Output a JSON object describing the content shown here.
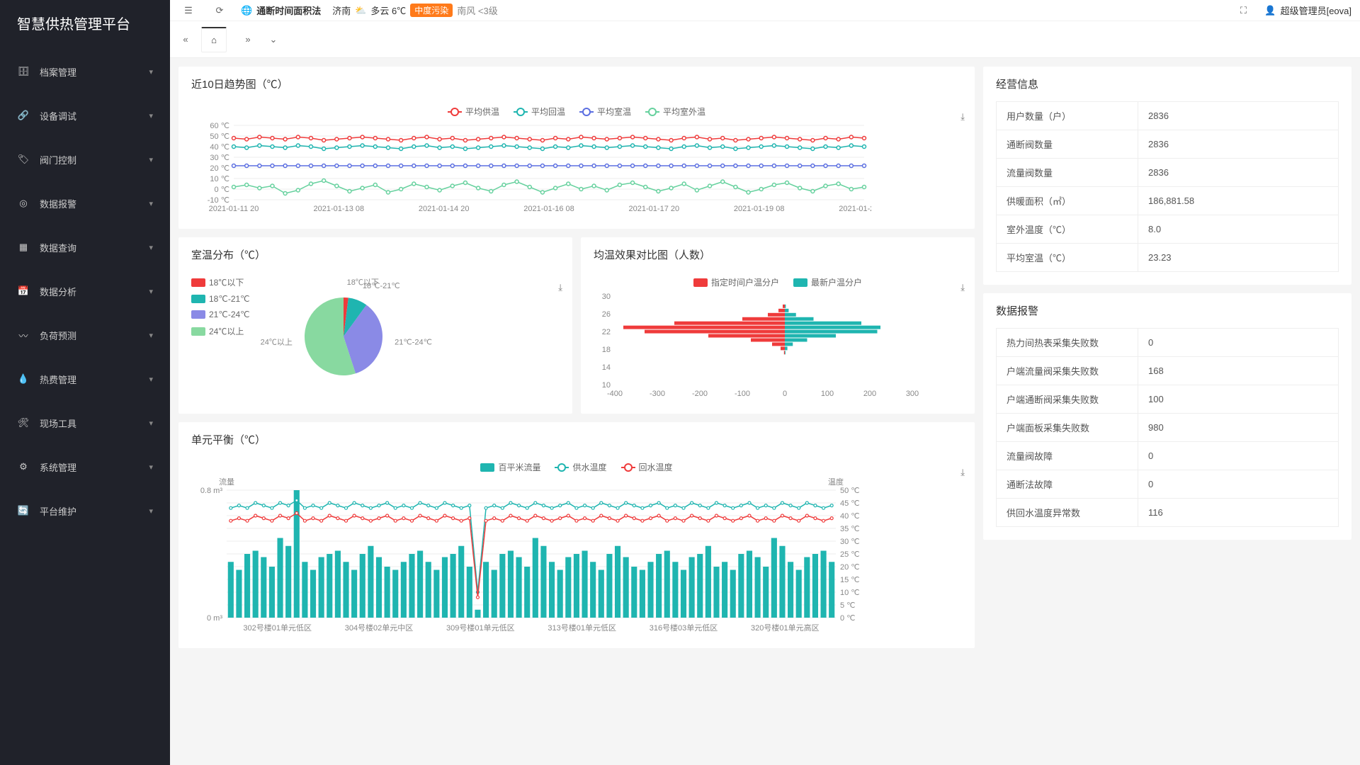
{
  "app": {
    "title": "智慧供热管理平台"
  },
  "sidebar": {
    "items": [
      {
        "icon": "archive-icon",
        "label": "档案管理"
      },
      {
        "icon": "link-icon",
        "label": "设备调试"
      },
      {
        "icon": "tag-icon",
        "label": "阀门控制"
      },
      {
        "icon": "target-icon",
        "label": "数据报警"
      },
      {
        "icon": "grid-icon",
        "label": "数据查询"
      },
      {
        "icon": "calendar-icon",
        "label": "数据分析"
      },
      {
        "icon": "activity-icon",
        "label": "负荷预测"
      },
      {
        "icon": "droplet-icon",
        "label": "热费管理"
      },
      {
        "icon": "tool-icon",
        "label": "现场工具"
      },
      {
        "icon": "gear-icon",
        "label": "系统管理"
      },
      {
        "icon": "refresh-icon",
        "label": "平台维护"
      }
    ]
  },
  "topbar": {
    "method": "通断时间面积法",
    "city": "济南",
    "weather": "多云 6℃",
    "pollution": "中度污染",
    "wind": "南风 <3级",
    "user": "超级管理员[eova]"
  },
  "trend_chart": {
    "title": "近10日趋势图（℃）",
    "type": "line",
    "legend": [
      "平均供温",
      "平均回温",
      "平均室温",
      "平均室外温"
    ],
    "colors": [
      "#ef3b3b",
      "#1fb5b0",
      "#5b6ee1",
      "#66d19e"
    ],
    "x_labels": [
      "2021-01-11 20",
      "2021-01-13 08",
      "2021-01-14 20",
      "2021-01-16 08",
      "2021-01-17 20",
      "2021-01-19 08",
      "2021-01-20 20"
    ],
    "y_ticks": [
      "-10 ℃",
      "0 ℃",
      "10 ℃",
      "20 ℃",
      "30 ℃",
      "40 ℃",
      "50 ℃",
      "60 ℃"
    ],
    "grid_color": "#eeeeee",
    "series": [
      [
        48,
        47,
        49,
        48,
        47,
        49,
        48,
        46,
        47,
        48,
        49,
        48,
        47,
        46,
        48,
        49,
        47,
        48,
        46,
        47,
        48,
        49,
        48,
        47,
        46,
        48,
        47,
        49,
        48,
        47,
        48,
        49,
        48,
        47,
        46,
        48,
        49,
        47,
        48,
        46,
        47,
        48,
        49,
        48,
        47,
        46,
        48,
        47,
        49,
        48
      ],
      [
        40,
        39,
        41,
        40,
        39,
        41,
        40,
        38,
        39,
        40,
        41,
        40,
        39,
        38,
        40,
        41,
        39,
        40,
        38,
        39,
        40,
        41,
        40,
        39,
        38,
        40,
        39,
        41,
        40,
        39,
        40,
        41,
        40,
        39,
        38,
        40,
        41,
        39,
        40,
        38,
        39,
        40,
        41,
        40,
        39,
        38,
        40,
        39,
        41,
        40
      ],
      [
        22,
        22,
        22,
        22,
        22,
        22,
        22,
        22,
        22,
        22,
        22,
        22,
        22,
        22,
        22,
        22,
        22,
        22,
        22,
        22,
        22,
        22,
        22,
        22,
        22,
        22,
        22,
        22,
        22,
        22,
        22,
        22,
        22,
        22,
        22,
        22,
        22,
        22,
        22,
        22,
        22,
        22,
        22,
        22,
        22,
        22,
        22,
        22,
        22,
        22
      ],
      [
        2,
        4,
        1,
        3,
        -4,
        -1,
        5,
        8,
        3,
        -2,
        1,
        4,
        -3,
        0,
        5,
        2,
        -1,
        3,
        6,
        1,
        -2,
        4,
        7,
        2,
        -3,
        1,
        5,
        0,
        3,
        -1,
        4,
        6,
        2,
        -2,
        1,
        5,
        -1,
        3,
        7,
        2,
        -3,
        0,
        4,
        6,
        1,
        -2,
        3,
        5,
        0,
        2
      ]
    ]
  },
  "pie_chart": {
    "title": "室温分布（℃）",
    "type": "pie",
    "colors": [
      "#ef3b3b",
      "#1fb5b0",
      "#8a8ae6",
      "#88d9a0"
    ],
    "labels": [
      "18℃以下",
      "18℃-21℃",
      "21℃-24℃",
      "24℃以上"
    ],
    "values": [
      2,
      8,
      35,
      55
    ],
    "callout_colors": [
      "#ef3b3b",
      "#1fb5b0",
      "#8a8ae6",
      "#88d9a0"
    ]
  },
  "pyramid_chart": {
    "title": "均温效果对比图（人数）",
    "type": "bar-horizontal-mirror",
    "legend": [
      "指定时间户温分户",
      "最新户温分户"
    ],
    "colors": [
      "#ef3b3b",
      "#1fb5b0"
    ],
    "y_labels": [
      "10",
      "14",
      "18",
      "22",
      "26",
      "30"
    ],
    "x_labels": [
      "-400",
      "-300",
      "-200",
      "-100",
      "0",
      "100",
      "200",
      "300"
    ],
    "left_values": [
      0,
      0,
      5,
      15,
      40,
      100,
      260,
      380,
      330,
      180,
      80,
      30,
      10,
      2,
      0,
      0,
      0,
      0,
      0,
      0,
      0
    ],
    "right_values": [
      0,
      0,
      3,
      12,
      35,
      90,
      240,
      300,
      290,
      160,
      70,
      25,
      8,
      2,
      0,
      0,
      0,
      0,
      0,
      0,
      0
    ]
  },
  "unit_chart": {
    "title": "单元平衡（℃）",
    "type": "combo-bar-line",
    "legend": [
      "百平米流量",
      "供水温度",
      "回水温度"
    ],
    "colors": [
      "#1fb5b0",
      "#1fb5b0",
      "#ef3b3b"
    ],
    "y1_label": "流量",
    "y2_label": "温度",
    "y1_ticks": [
      "0 m³",
      "0.8 m³"
    ],
    "y2_ticks": [
      "0 ℃",
      "5 ℃",
      "10 ℃",
      "15 ℃",
      "20 ℃",
      "25 ℃",
      "30 ℃",
      "35 ℃",
      "40 ℃",
      "45 ℃",
      "50 ℃"
    ],
    "x_labels": [
      "302号楼01单元低区",
      "304号楼02单元中区",
      "309号楼01单元低区",
      "313号楼01单元低区",
      "316号楼03单元低区",
      "320号楼01单元高区"
    ],
    "bar_values": [
      0.35,
      0.3,
      0.4,
      0.42,
      0.38,
      0.32,
      0.5,
      0.45,
      0.8,
      0.35,
      0.3,
      0.38,
      0.4,
      0.42,
      0.35,
      0.3,
      0.4,
      0.45,
      0.38,
      0.32,
      0.3,
      0.35,
      0.4,
      0.42,
      0.35,
      0.3,
      0.38,
      0.4,
      0.45,
      0.32,
      0.05,
      0.35,
      0.3,
      0.4,
      0.42,
      0.38,
      0.32,
      0.5,
      0.45,
      0.35,
      0.3,
      0.38,
      0.4,
      0.42,
      0.35,
      0.3,
      0.4,
      0.45,
      0.38,
      0.32,
      0.3,
      0.35,
      0.4,
      0.42,
      0.35,
      0.3,
      0.38,
      0.4,
      0.45,
      0.32,
      0.35,
      0.3,
      0.4,
      0.42,
      0.38,
      0.32,
      0.5,
      0.45,
      0.35,
      0.3,
      0.38,
      0.4,
      0.42,
      0.35
    ],
    "supply_values": [
      43,
      44,
      43,
      45,
      44,
      43,
      45,
      44,
      46,
      43,
      44,
      43,
      45,
      44,
      43,
      45,
      44,
      43,
      44,
      45,
      43,
      44,
      43,
      45,
      44,
      43,
      45,
      44,
      43,
      44,
      10,
      43,
      44,
      43,
      45,
      44,
      43,
      45,
      44,
      43,
      44,
      45,
      43,
      44,
      43,
      45,
      44,
      43,
      45,
      44,
      43,
      44,
      45,
      43,
      44,
      43,
      45,
      44,
      43,
      45,
      44,
      43,
      44,
      45,
      43,
      44,
      43,
      45,
      44,
      43,
      45,
      44,
      43,
      44
    ],
    "return_values": [
      38,
      39,
      38,
      40,
      39,
      38,
      40,
      39,
      41,
      38,
      39,
      38,
      40,
      39,
      38,
      40,
      39,
      38,
      39,
      40,
      38,
      39,
      38,
      40,
      39,
      38,
      40,
      39,
      38,
      39,
      8,
      38,
      39,
      38,
      40,
      39,
      38,
      40,
      39,
      38,
      39,
      40,
      38,
      39,
      38,
      40,
      39,
      38,
      40,
      39,
      38,
      39,
      40,
      38,
      39,
      38,
      40,
      39,
      38,
      40,
      39,
      38,
      39,
      40,
      38,
      39,
      38,
      40,
      39,
      38,
      40,
      39,
      38,
      39
    ]
  },
  "biz_info": {
    "title": "经营信息",
    "rows": [
      {
        "k": "用户数量（户）",
        "v": "2836"
      },
      {
        "k": "通断阀数量",
        "v": "2836"
      },
      {
        "k": "流量阀数量",
        "v": "2836"
      },
      {
        "k": "供暖面积（㎡）",
        "v": "186,881.58"
      },
      {
        "k": "室外温度（℃）",
        "v": "8.0"
      },
      {
        "k": "平均室温（℃）",
        "v": "23.23"
      }
    ]
  },
  "alarm_info": {
    "title": "数据报警",
    "rows": [
      {
        "k": "热力间热表采集失败数",
        "v": "0"
      },
      {
        "k": "户端流量阀采集失败数",
        "v": "168"
      },
      {
        "k": "户端通断阀采集失败数",
        "v": "100"
      },
      {
        "k": "户端面板采集失败数",
        "v": "980"
      },
      {
        "k": "流量阀故障",
        "v": "0"
      },
      {
        "k": "通断法故障",
        "v": "0"
      },
      {
        "k": "供回水温度异常数",
        "v": "116"
      }
    ]
  }
}
